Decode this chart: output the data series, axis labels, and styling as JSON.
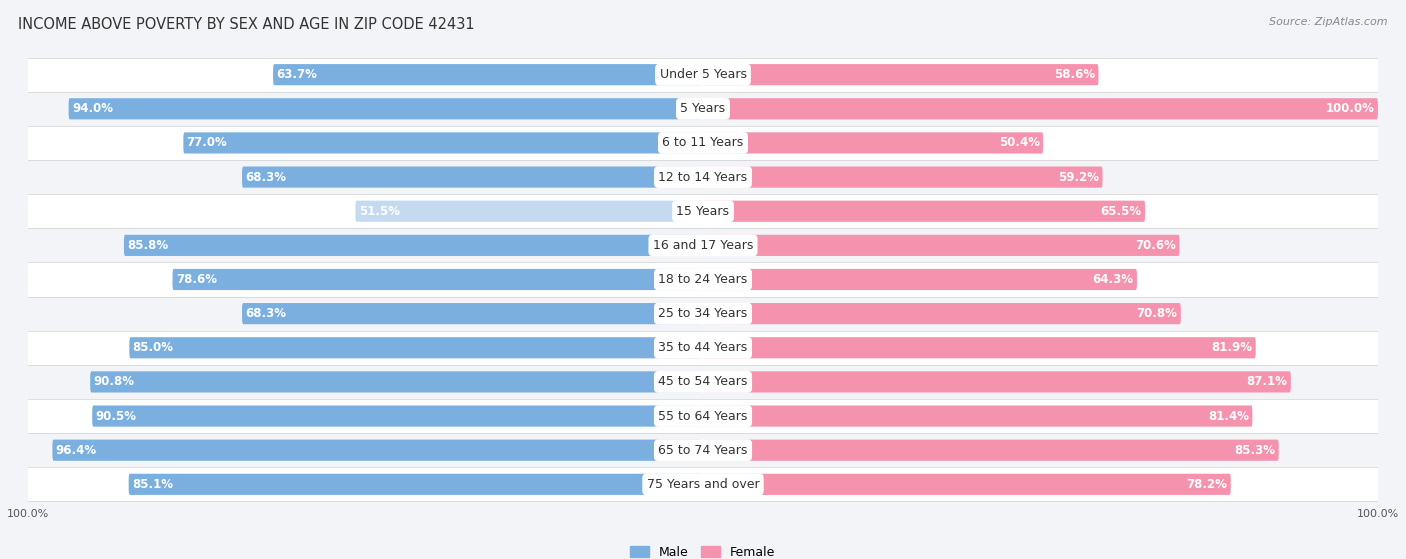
{
  "title": "INCOME ABOVE POVERTY BY SEX AND AGE IN ZIP CODE 42431",
  "source": "Source: ZipAtlas.com",
  "categories": [
    "Under 5 Years",
    "5 Years",
    "6 to 11 Years",
    "12 to 14 Years",
    "15 Years",
    "16 and 17 Years",
    "18 to 24 Years",
    "25 to 34 Years",
    "35 to 44 Years",
    "45 to 54 Years",
    "55 to 64 Years",
    "65 to 74 Years",
    "75 Years and over"
  ],
  "male_values": [
    63.7,
    94.0,
    77.0,
    68.3,
    51.5,
    85.8,
    78.6,
    68.3,
    85.0,
    90.8,
    90.5,
    96.4,
    85.1
  ],
  "female_values": [
    58.6,
    100.0,
    50.4,
    59.2,
    65.5,
    70.6,
    64.3,
    70.8,
    81.9,
    87.1,
    81.4,
    85.3,
    78.2
  ],
  "male_color": "#7aafe0",
  "female_color": "#f592ad",
  "male_color_light": "#c5daf0",
  "female_color_light": "#f9cdd8",
  "row_even_bg": "#f2f4f7",
  "row_odd_bg": "#ffffff",
  "title_fontsize": 10.5,
  "label_fontsize": 9,
  "value_fontsize": 8.5,
  "legend_fontsize": 9,
  "axis_label_fontsize": 8
}
